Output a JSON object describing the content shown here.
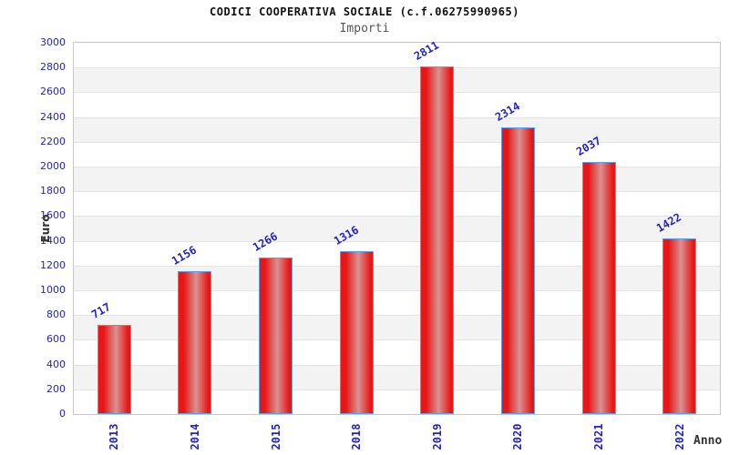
{
  "chart_data": {
    "type": "bar",
    "title": "CODICI COOPERATIVA SOCIALE (c.f.06275990965)",
    "subtitle": "Importi",
    "xlabel": "Anno",
    "ylabel": "Euro",
    "categories": [
      "2013",
      "2014",
      "2015",
      "2018",
      "2019",
      "2020",
      "2021",
      "2022"
    ],
    "values": [
      717,
      1156,
      1266,
      1316,
      2811,
      2314,
      2037,
      1422
    ],
    "ylim": [
      0,
      3000
    ],
    "ytick_step": 200,
    "grid": "horizontal",
    "legend": "none",
    "band_pattern": "alternating white/gray stripes per 200 units",
    "colors": {
      "bar_fill": "#e81616",
      "bar_fill_light": "#d89292",
      "bar_border": "#55a0f0",
      "tick_label": "#2222cc",
      "value_label": "#2222cc",
      "title": "#111111",
      "subtitle": "#555555",
      "axis_label": "#333333",
      "band_gray": "#f3f3f3",
      "gridline": "#e3e3e3",
      "plot_border": "#c8c8c8"
    }
  }
}
